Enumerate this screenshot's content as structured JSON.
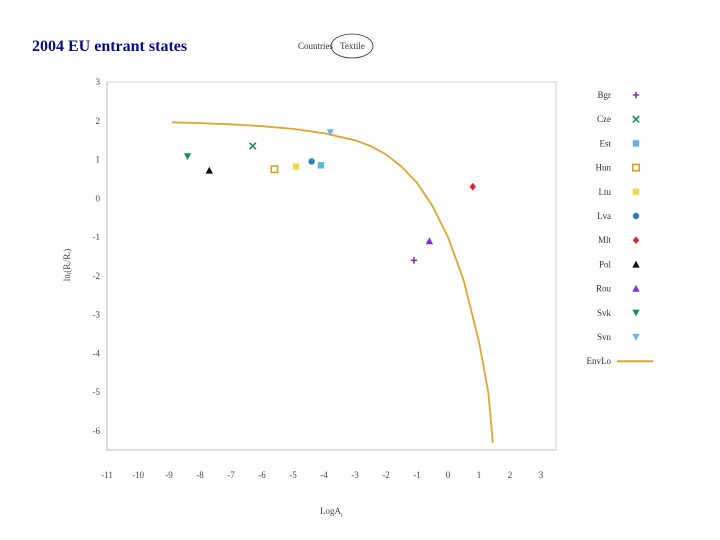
{
  "slide": {
    "title": "2004 EU entrant states"
  },
  "subtitle": {
    "left": "Countries",
    "circled": "Textile"
  },
  "chart_data": {
    "type": "scatter",
    "xlabel": "LogA",
    "xlabel_sub": "i",
    "ylabel": "lnᵢ(Rᵢ/Rᵣ)",
    "xlim": [
      -11,
      3
    ],
    "ylim": [
      -6.5,
      3
    ],
    "xticks": [
      -11,
      -10,
      -9,
      -8,
      -7,
      -6,
      -5,
      -4,
      -3,
      -2,
      -1,
      0,
      1,
      2,
      3
    ],
    "yticks": [
      3,
      2,
      1,
      0,
      -1,
      -2,
      -3,
      -4,
      -5,
      -6
    ],
    "grid": false,
    "legend_position": "right",
    "series": [
      {
        "name": "Bgr",
        "marker": "plus",
        "color": "#7b2fbf",
        "points": [
          [
            -1.1,
            -1.6
          ]
        ]
      },
      {
        "name": "Cze",
        "marker": "cross",
        "color": "#1f8a6a",
        "points": [
          [
            -6.3,
            1.35
          ]
        ]
      },
      {
        "name": "Est",
        "marker": "square",
        "color": "#5fb3e0",
        "points": [
          [
            -4.1,
            0.85
          ]
        ]
      },
      {
        "name": "Hun",
        "marker": "square-open",
        "color": "#e0a020",
        "points": [
          [
            -5.6,
            0.75
          ]
        ]
      },
      {
        "name": "Ltu",
        "marker": "square",
        "color": "#eedd44",
        "points": [
          [
            -4.9,
            0.82
          ]
        ]
      },
      {
        "name": "Lva",
        "marker": "circle",
        "color": "#2a7fb8",
        "points": [
          [
            -4.4,
            0.95
          ]
        ]
      },
      {
        "name": "Mlt",
        "marker": "diamond",
        "color": "#d62828",
        "points": [
          [
            0.8,
            0.3
          ]
        ]
      },
      {
        "name": "Pol",
        "marker": "triangle-up",
        "color": "#111111",
        "points": [
          [
            -7.7,
            0.72
          ]
        ]
      },
      {
        "name": "Rou",
        "marker": "triangle-up",
        "color": "#8a2be2",
        "points": [
          [
            -0.6,
            -1.1
          ]
        ]
      },
      {
        "name": "Svk",
        "marker": "triangle-down",
        "color": "#1f8a6a",
        "points": [
          [
            -8.4,
            1.08
          ]
        ]
      },
      {
        "name": "Svn",
        "marker": "triangle-down",
        "color": "#6ab7e8",
        "points": [
          [
            -3.8,
            1.7
          ]
        ]
      },
      {
        "name": "EnvLo",
        "marker": "line",
        "color": "#e0a530",
        "points": [
          [
            -8.9,
            1.96
          ],
          [
            -8,
            1.94
          ],
          [
            -7,
            1.91
          ],
          [
            -6,
            1.86
          ],
          [
            -5,
            1.79
          ],
          [
            -4,
            1.68
          ],
          [
            -3,
            1.5
          ],
          [
            -2.5,
            1.35
          ],
          [
            -2,
            1.13
          ],
          [
            -1.5,
            0.82
          ],
          [
            -1,
            0.4
          ],
          [
            -0.5,
            -0.2
          ],
          [
            0,
            -1.0
          ],
          [
            0.5,
            -2.1
          ],
          [
            1,
            -3.7
          ],
          [
            1.3,
            -5.0
          ],
          [
            1.45,
            -6.3
          ]
        ]
      }
    ]
  }
}
